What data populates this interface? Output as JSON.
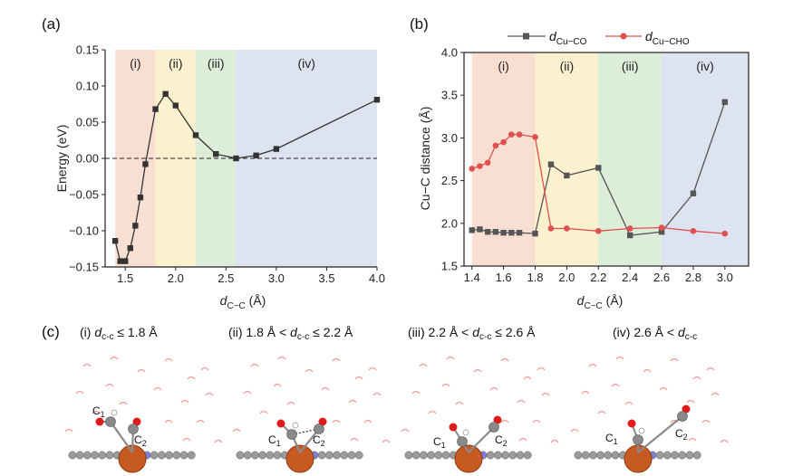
{
  "panels": {
    "a": "(a)",
    "b": "(b)",
    "c": "(c)"
  },
  "colors": {
    "energy_line": "#333333",
    "cu_co": "#555555",
    "cu_cho": "#e05050",
    "region_i": "#f9dfd2",
    "region_ii": "#fbf1cf",
    "region_iii": "#dcedd8",
    "region_iv": "#dde3f0"
  },
  "chart_data": [
    {
      "type": "line",
      "panel": "(a)",
      "ylabel": "Energy (eV)",
      "xlabel_main": "d",
      "xlabel_sub": "C−C",
      "xlabel_unit": " (Å)",
      "xlim": [
        1.3,
        4.0
      ],
      "ylim": [
        -0.15,
        0.15
      ],
      "xticks": [
        "1.5",
        "2.0",
        "2.5",
        "3.0",
        "3.5",
        "4.0"
      ],
      "yticks": [
        "0.15",
        "0.10",
        "0.05",
        "0.00",
        "−0.05",
        "−0.10",
        "−0.15"
      ],
      "regions": [
        {
          "label": "(i)",
          "from": 1.4,
          "to": 1.8
        },
        {
          "label": "(ii)",
          "from": 1.8,
          "to": 2.2
        },
        {
          "label": "(iii)",
          "from": 2.2,
          "to": 2.6
        },
        {
          "label": "(iv)",
          "from": 2.6,
          "to": 4.0
        }
      ],
      "reference_line": {
        "y": 0.0,
        "style": "dashed"
      },
      "series": [
        {
          "x": [
            1.4,
            1.45,
            1.5,
            1.55,
            1.6,
            1.65,
            1.7,
            1.8,
            1.9,
            2.0,
            2.2,
            2.4,
            2.6,
            2.8,
            3.0,
            4.0
          ],
          "y": [
            -0.114,
            -0.142,
            -0.142,
            -0.124,
            -0.093,
            -0.054,
            -0.008,
            0.068,
            0.089,
            0.073,
            0.032,
            0.006,
            0.0,
            0.004,
            0.013,
            0.081
          ]
        }
      ]
    },
    {
      "type": "line",
      "panel": "(b)",
      "ylabel": "Cu−C distance (Å)",
      "xlabel_main": "d",
      "xlabel_sub": "C−C",
      "xlabel_unit": " (Å)",
      "xlim": [
        1.35,
        3.15
      ],
      "ylim": [
        1.5,
        4.0
      ],
      "xticks": [
        "1.4",
        "1.6",
        "1.8",
        "2.0",
        "2.2",
        "2.4",
        "2.6",
        "2.8",
        "3.0"
      ],
      "yticks": [
        "4.0",
        "3.5",
        "3.0",
        "2.5",
        "2.0",
        "1.5"
      ],
      "regions": [
        {
          "label": "(i)",
          "from": 1.4,
          "to": 1.8
        },
        {
          "label": "(ii)",
          "from": 1.8,
          "to": 2.2
        },
        {
          "label": "(iii)",
          "from": 2.2,
          "to": 2.6
        },
        {
          "label": "(iv)",
          "from": 2.6,
          "to": 3.15
        }
      ],
      "series": [
        {
          "name_main": "d",
          "name_sub": "Cu−CO",
          "marker": "square",
          "x": [
            1.4,
            1.45,
            1.5,
            1.55,
            1.6,
            1.65,
            1.7,
            1.8,
            1.9,
            2.0,
            2.2,
            2.4,
            2.6,
            2.8,
            3.0
          ],
          "y": [
            1.92,
            1.93,
            1.9,
            1.9,
            1.89,
            1.89,
            1.89,
            1.88,
            2.69,
            2.56,
            2.65,
            1.86,
            1.9,
            2.35,
            3.42
          ]
        },
        {
          "name_main": "d",
          "name_sub": "Cu−CHO",
          "marker": "circle",
          "x": [
            1.4,
            1.45,
            1.5,
            1.55,
            1.6,
            1.65,
            1.7,
            1.8,
            1.9,
            2.0,
            2.2,
            2.4,
            2.6,
            2.8,
            3.0
          ],
          "y": [
            2.64,
            2.67,
            2.71,
            2.91,
            2.95,
            3.04,
            3.04,
            3.01,
            1.94,
            1.94,
            1.91,
            1.94,
            1.95,
            1.91,
            1.88
          ]
        }
      ]
    }
  ],
  "conditions": [
    {
      "prefix": "(i) ",
      "d": "d",
      "sub": "c-c",
      "suffix": " ≤ 1.8 Å"
    },
    {
      "prefix": "(ii) 1.8 Å < ",
      "d": "d",
      "sub": "c-c",
      "suffix": " ≤ 2.2 Å"
    },
    {
      "prefix": "(iii) 2.2 Å < ",
      "d": "d",
      "sub": "c-c",
      "suffix": " ≤ 2.6 Å"
    },
    {
      "prefix": "(iv) 2.6 Å < ",
      "d": "d",
      "sub": "c-c",
      "suffix": ""
    }
  ],
  "structures": [
    {
      "c1": "C",
      "c1_sub": "1",
      "c2": "C",
      "c2_sub": "2"
    },
    {
      "c1": "C",
      "c1_sub": "1",
      "c2": "C",
      "c2_sub": "2"
    },
    {
      "c1": "C",
      "c1_sub": "1",
      "c2": "C",
      "c2_sub": "2"
    },
    {
      "c1": "C",
      "c1_sub": "1",
      "c2": "C",
      "c2_sub": "2"
    }
  ]
}
